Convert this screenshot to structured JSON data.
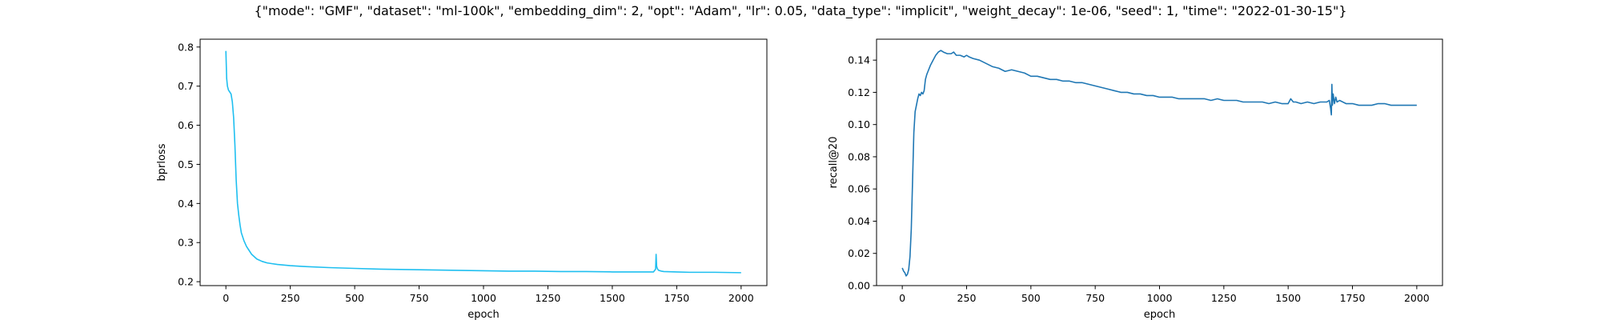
{
  "figure_title": "{\"mode\": \"GMF\", \"dataset\": \"ml-100k\", \"embedding_dim\": 2, \"opt\": \"Adam\", \"lr\": 0.05, \"data_type\": \"implicit\", \"weight_decay\": 1e-06, \"seed\": 1, \"time\": \"2022-01-30-15\"}",
  "chart_data": [
    {
      "type": "line",
      "title": "",
      "xlabel": "epoch",
      "ylabel": "bprloss",
      "xlim": [
        -100,
        2100
      ],
      "ylim": [
        0.19,
        0.82
      ],
      "xticks": [
        0,
        250,
        500,
        750,
        1000,
        1250,
        1500,
        1750,
        2000
      ],
      "yticks": [
        0.2,
        0.3,
        0.4,
        0.5,
        0.6,
        0.7,
        0.8
      ],
      "ytick_labels": [
        "0.2",
        "0.3",
        "0.4",
        "0.5",
        "0.6",
        "0.7",
        "0.8"
      ],
      "color": "#1fbff0",
      "grid": false,
      "series": [
        {
          "x": [
            0,
            3,
            6,
            10,
            15,
            20,
            25,
            30,
            35,
            40,
            45,
            50,
            55,
            60,
            70,
            80,
            90,
            100,
            120,
            140,
            160,
            180,
            200,
            250,
            300,
            400,
            500,
            600,
            700,
            800,
            900,
            1000,
            1100,
            1200,
            1300,
            1400,
            1500,
            1600,
            1660,
            1668,
            1670,
            1672,
            1674,
            1676,
            1680,
            1690,
            1700,
            1750,
            1800,
            1900,
            2000
          ],
          "y": [
            0.79,
            0.72,
            0.7,
            0.69,
            0.685,
            0.68,
            0.66,
            0.62,
            0.55,
            0.46,
            0.4,
            0.37,
            0.345,
            0.325,
            0.305,
            0.29,
            0.28,
            0.27,
            0.258,
            0.252,
            0.248,
            0.246,
            0.244,
            0.241,
            0.239,
            0.236,
            0.234,
            0.232,
            0.231,
            0.23,
            0.229,
            0.228,
            0.227,
            0.227,
            0.226,
            0.226,
            0.225,
            0.225,
            0.225,
            0.232,
            0.27,
            0.24,
            0.235,
            0.232,
            0.229,
            0.227,
            0.226,
            0.225,
            0.224,
            0.224,
            0.223
          ]
        }
      ]
    },
    {
      "type": "line",
      "title": "",
      "xlabel": "epoch",
      "ylabel": "recall@20",
      "xlim": [
        -100,
        2100
      ],
      "ylim": [
        0.0,
        0.153
      ],
      "xticks": [
        0,
        250,
        500,
        750,
        1000,
        1250,
        1500,
        1750,
        2000
      ],
      "yticks": [
        0.0,
        0.02,
        0.04,
        0.06,
        0.08,
        0.1,
        0.12,
        0.14
      ],
      "ytick_labels": [
        "0.00",
        "0.02",
        "0.04",
        "0.06",
        "0.08",
        "0.10",
        "0.12",
        "0.14"
      ],
      "color": "#1f77b4",
      "grid": false,
      "series": [
        {
          "x": [
            0,
            5,
            10,
            15,
            20,
            25,
            30,
            35,
            40,
            45,
            50,
            55,
            60,
            65,
            70,
            75,
            80,
            85,
            90,
            95,
            100,
            110,
            120,
            130,
            140,
            150,
            160,
            175,
            190,
            200,
            210,
            225,
            240,
            250,
            260,
            275,
            300,
            325,
            350,
            375,
            400,
            425,
            450,
            475,
            500,
            525,
            550,
            575,
            600,
            625,
            650,
            675,
            700,
            725,
            750,
            775,
            800,
            825,
            850,
            875,
            900,
            925,
            950,
            975,
            1000,
            1025,
            1050,
            1075,
            1100,
            1125,
            1150,
            1175,
            1200,
            1225,
            1250,
            1275,
            1300,
            1325,
            1350,
            1375,
            1400,
            1425,
            1450,
            1475,
            1500,
            1510,
            1520,
            1530,
            1550,
            1575,
            1600,
            1625,
            1650,
            1660,
            1665,
            1668,
            1670,
            1672,
            1675,
            1680,
            1685,
            1690,
            1700,
            1725,
            1750,
            1775,
            1800,
            1825,
            1850,
            1875,
            1900,
            1925,
            1950,
            1975,
            2000
          ],
          "y": [
            0.011,
            0.009,
            0.008,
            0.006,
            0.007,
            0.01,
            0.018,
            0.035,
            0.065,
            0.095,
            0.108,
            0.112,
            0.116,
            0.119,
            0.118,
            0.12,
            0.119,
            0.121,
            0.128,
            0.131,
            0.133,
            0.137,
            0.14,
            0.143,
            0.145,
            0.146,
            0.145,
            0.144,
            0.144,
            0.145,
            0.143,
            0.143,
            0.142,
            0.143,
            0.142,
            0.141,
            0.14,
            0.138,
            0.136,
            0.135,
            0.133,
            0.134,
            0.133,
            0.132,
            0.13,
            0.13,
            0.129,
            0.128,
            0.128,
            0.127,
            0.127,
            0.126,
            0.126,
            0.125,
            0.124,
            0.123,
            0.122,
            0.121,
            0.12,
            0.12,
            0.119,
            0.119,
            0.118,
            0.118,
            0.117,
            0.117,
            0.117,
            0.116,
            0.116,
            0.116,
            0.116,
            0.116,
            0.115,
            0.116,
            0.115,
            0.115,
            0.115,
            0.114,
            0.114,
            0.114,
            0.114,
            0.113,
            0.114,
            0.113,
            0.113,
            0.116,
            0.114,
            0.114,
            0.113,
            0.114,
            0.113,
            0.114,
            0.114,
            0.115,
            0.11,
            0.106,
            0.125,
            0.112,
            0.119,
            0.113,
            0.117,
            0.114,
            0.115,
            0.113,
            0.113,
            0.112,
            0.112,
            0.112,
            0.113,
            0.113,
            0.112,
            0.112,
            0.112,
            0.112,
            0.112
          ]
        }
      ]
    }
  ]
}
